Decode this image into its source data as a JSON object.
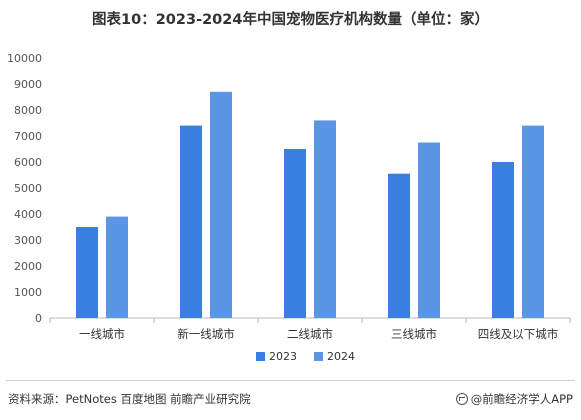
{
  "title": "图表10：2023-2024年中国宠物医疗机构数量（单位：家）",
  "source": "资料来源：PetNotes 百度地图  前瞻产业研究院",
  "credit": "@前瞻经济学人APP",
  "colors": {
    "s2023": "#3a7fe0",
    "s2024": "#5b95e6",
    "axis": "#bbbbbb",
    "tick_text": "#555555"
  },
  "chart_data": {
    "type": "bar",
    "categories": [
      "一线城市",
      "新一线城市",
      "二线城市",
      "三线城市",
      "四线及以下城市"
    ],
    "series": [
      {
        "name": "2023",
        "values": [
          3500,
          7400,
          6500,
          5550,
          6000
        ]
      },
      {
        "name": "2024",
        "values": [
          3900,
          8700,
          7600,
          6750,
          7400
        ]
      }
    ],
    "yticks": [
      0,
      1000,
      2000,
      3000,
      4000,
      5000,
      6000,
      7000,
      8000,
      9000,
      10000
    ],
    "ylim": [
      0,
      10000
    ],
    "xlabel": "",
    "ylabel": "",
    "grid": false,
    "legend_position": "bottom"
  }
}
